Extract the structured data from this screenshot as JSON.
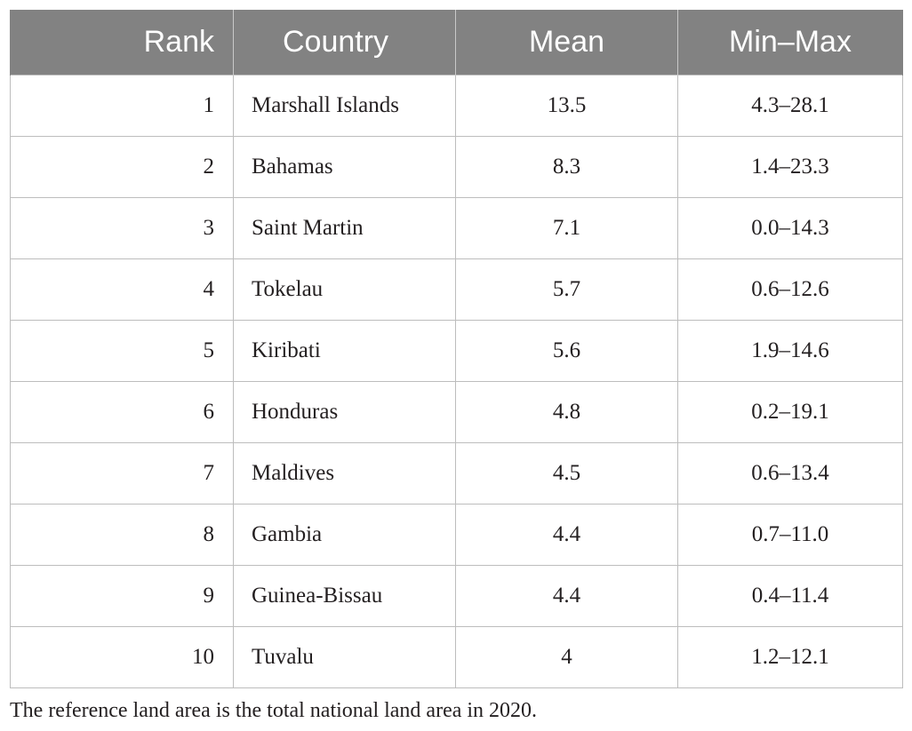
{
  "table": {
    "headers": {
      "rank": "Rank",
      "country": "Country",
      "mean": "Mean",
      "minmax": "Min–Max"
    },
    "rows": [
      {
        "rank": "1",
        "country": "Marshall Islands",
        "mean": "13.5",
        "minmax": "4.3–28.1"
      },
      {
        "rank": "2",
        "country": "Bahamas",
        "mean": "8.3",
        "minmax": "1.4–23.3"
      },
      {
        "rank": "3",
        "country": "Saint Martin",
        "mean": "7.1",
        "minmax": "0.0–14.3"
      },
      {
        "rank": "4",
        "country": "Tokelau",
        "mean": "5.7",
        "minmax": "0.6–12.6"
      },
      {
        "rank": "5",
        "country": "Kiribati",
        "mean": "5.6",
        "minmax": "1.9–14.6"
      },
      {
        "rank": "6",
        "country": "Honduras",
        "mean": "4.8",
        "minmax": "0.2–19.1"
      },
      {
        "rank": "7",
        "country": "Maldives",
        "mean": "4.5",
        "minmax": "0.6–13.4"
      },
      {
        "rank": "8",
        "country": "Gambia",
        "mean": "4.4",
        "minmax": "0.7–11.0"
      },
      {
        "rank": "9",
        "country": "Guinea-Bissau",
        "mean": "4.4",
        "minmax": "0.4–11.4"
      },
      {
        "rank": "10",
        "country": "Tuvalu",
        "mean": "4",
        "minmax": "1.2–12.1"
      }
    ]
  },
  "footnote": "The reference land area is the total national land area in 2020.",
  "colors": {
    "header_background": "#828282",
    "header_text": "#ffffff",
    "body_text": "#231f20",
    "grid_lines": "#bdbdbd"
  }
}
